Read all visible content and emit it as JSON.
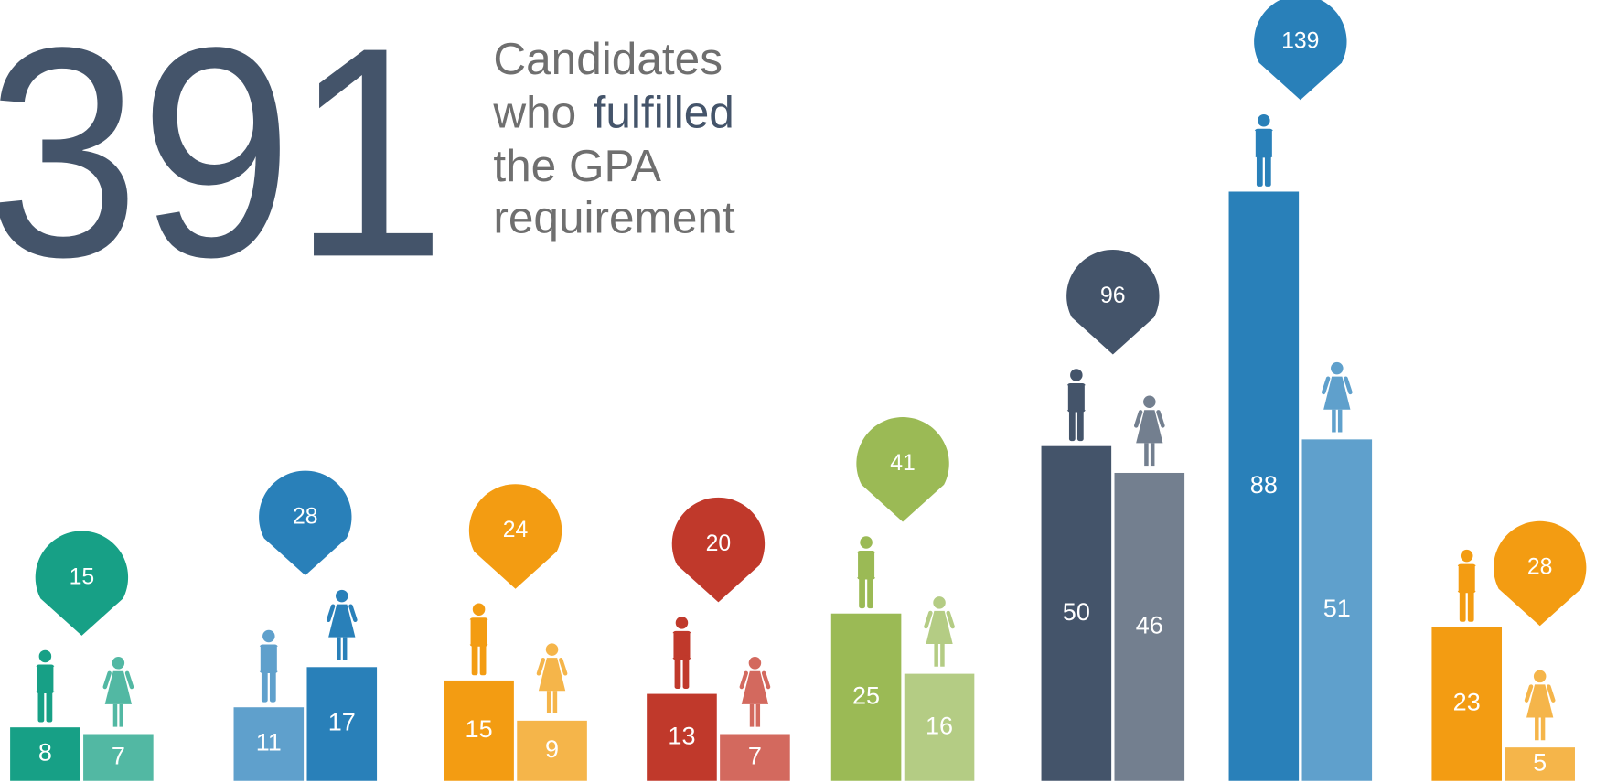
{
  "chart_data": {
    "type": "paired-bar",
    "title": "391",
    "subtitle": [
      "Candidates",
      "who",
      "fulfilled",
      "the GPA",
      "requirement"
    ],
    "ylim": [
      0,
      100
    ],
    "series": [
      {
        "values": [
          8,
          11,
          15,
          13,
          25,
          50,
          88,
          23
        ],
        "colors": [
          "#17a086",
          "#5fa0cc",
          "#f39c12",
          "#c0392b",
          "#9bba55",
          "#44546a",
          "#2980b9",
          "#f39c12"
        ]
      },
      {
        "values": [
          7,
          17,
          9,
          7,
          16,
          46,
          51,
          5
        ],
        "colors": [
          "#52b8a3",
          "#2980b9",
          "#f5b54a",
          "#d3695e",
          "#b4cc84",
          "#737f8f",
          "#5fa0cc",
          "#f5b54a"
        ]
      }
    ],
    "totals": {
      "values": [
        15,
        28,
        24,
        20,
        41,
        96,
        139,
        28
      ],
      "colors": [
        "#17a086",
        "#2980b9",
        "#f39c12",
        "#c0392b",
        "#9bba55",
        "#44546a",
        "#2980b9",
        "#f39c12"
      ]
    }
  }
}
